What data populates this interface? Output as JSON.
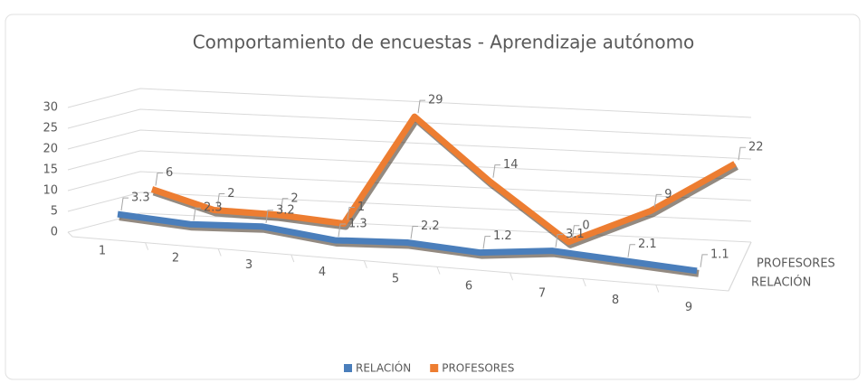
{
  "chart_data": {
    "type": "line3d",
    "title": "Comportamiento de encuestas - Aprendizaje autónomo",
    "categories": [
      "1",
      "2",
      "3",
      "4",
      "5",
      "6",
      "7",
      "8",
      "9"
    ],
    "series": [
      {
        "name": "RELACIÓN",
        "color": "#4a7ebb",
        "values": [
          3.3,
          2.3,
          3.2,
          1.3,
          2.2,
          1.2,
          3.1,
          2.1,
          1.1
        ]
      },
      {
        "name": "PROFESORES",
        "color": "#ed7d31",
        "values": [
          6,
          2,
          2,
          1,
          29,
          14,
          0,
          9,
          22
        ]
      }
    ],
    "ylim": [
      0,
      30
    ],
    "yticks": [
      0,
      5,
      10,
      15,
      20,
      25,
      30
    ],
    "grid": true,
    "legend": "bottom"
  }
}
